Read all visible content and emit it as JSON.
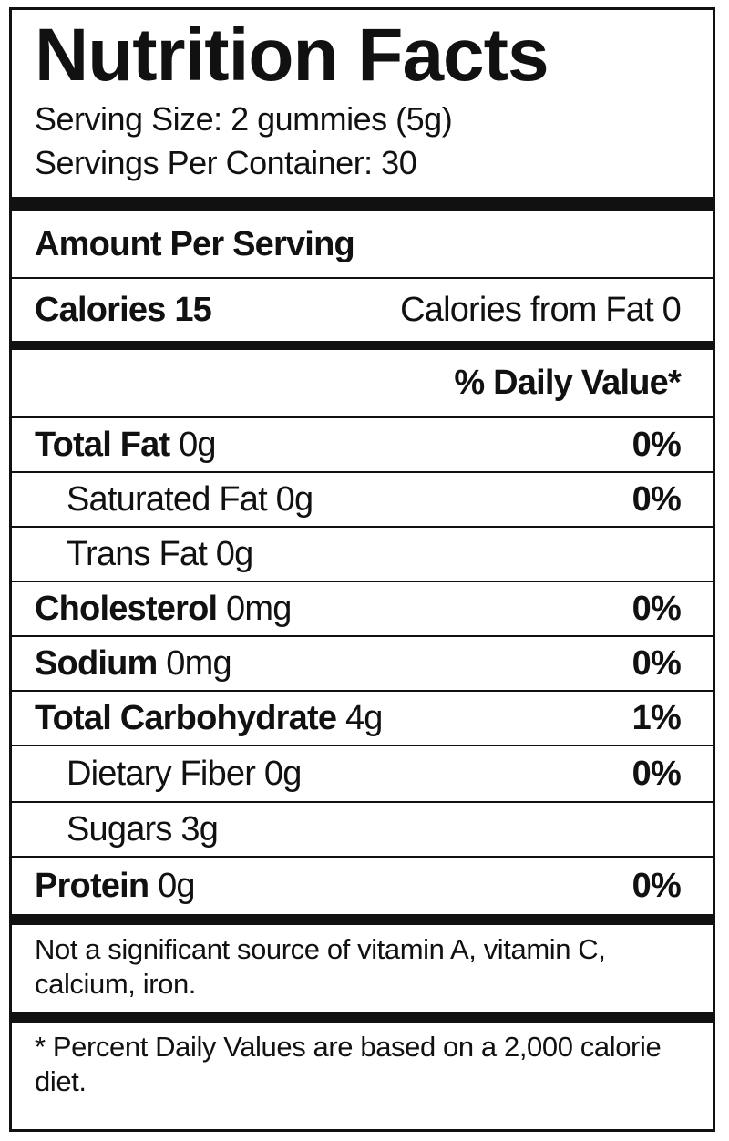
{
  "header": {
    "title": "Nutrition Facts",
    "serving_size": "Serving Size: 2 gummies (5g)",
    "servings_per_container": "Servings Per Container: 30"
  },
  "amount_per_serving": "Amount Per Serving",
  "calories": {
    "label": "Calories 15",
    "from_fat": "Calories from Fat 0"
  },
  "daily_value_header": "% Daily Value*",
  "nutrients": [
    {
      "name": "Total Fat",
      "amount": "0g",
      "dv": "0%"
    },
    {
      "name": "Saturated Fat",
      "amount": "0g",
      "dv": "0%"
    },
    {
      "name": "Trans Fat",
      "amount": "0g"
    },
    {
      "name": "Cholesterol",
      "amount": "0mg",
      "dv": "0%"
    },
    {
      "name": "Sodium",
      "amount": "0mg",
      "dv": "0%"
    },
    {
      "name": "Total Carbohydrate",
      "amount": "4g",
      "dv": "1%"
    },
    {
      "name": "Dietary Fiber",
      "amount": "0g",
      "dv": "0%"
    },
    {
      "name": "Sugars",
      "amount": "3g"
    },
    {
      "name": "Protein",
      "amount": "0g",
      "dv": "0%"
    }
  ],
  "note": "Not a significant source of vitamin A, vitamin C, calcium, iron.",
  "footnote": "* Percent Daily Values are based on a 2,000 calorie diet."
}
